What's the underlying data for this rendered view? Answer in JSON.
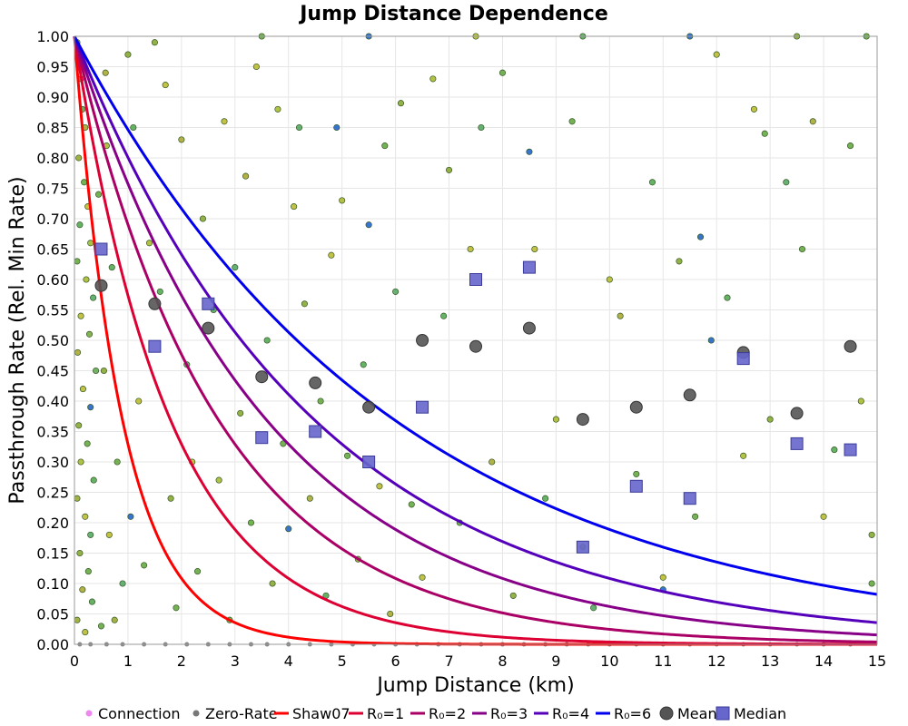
{
  "chart_data": {
    "type": "scatter",
    "title": "Jump Distance Dependence",
    "xlabel": "Jump Distance (km)",
    "ylabel": "Passthrough Rate (Rel. Min Rate)",
    "xlim": [
      0,
      15
    ],
    "ylim": [
      0,
      1
    ],
    "x_ticks": [
      "0",
      "1",
      "2",
      "3",
      "4",
      "5",
      "6",
      "7",
      "8",
      "9",
      "10",
      "11",
      "12",
      "13",
      "14",
      "15"
    ],
    "y_ticks": [
      "0.00",
      "0.05",
      "0.10",
      "0.15",
      "0.20",
      "0.25",
      "0.30",
      "0.35",
      "0.40",
      "0.45",
      "0.50",
      "0.55",
      "0.60",
      "0.65",
      "0.70",
      "0.75",
      "0.80",
      "0.85",
      "0.90",
      "0.95",
      "1.00"
    ],
    "grid": true,
    "legend_position": "bottom",
    "legend": [
      {
        "label": "Connection",
        "kind": "dot",
        "color": "#ee88ee"
      },
      {
        "label": "Zero-Rate",
        "kind": "dot",
        "color": "#777777"
      },
      {
        "label": "Shaw07",
        "kind": "line",
        "color": "#ff0000"
      },
      {
        "label": "R₀=1",
        "kind": "line",
        "color": "#dd0033"
      },
      {
        "label": "R₀=2",
        "kind": "line",
        "color": "#aa0066"
      },
      {
        "label": "R₀=3",
        "kind": "line",
        "color": "#880088"
      },
      {
        "label": "R₀=4",
        "kind": "line",
        "color": "#5500bb"
      },
      {
        "label": "R₀=6",
        "kind": "line",
        "color": "#0000ee"
      },
      {
        "label": "Mean",
        "kind": "circle",
        "color": "#555555"
      },
      {
        "label": "Median",
        "kind": "square",
        "color": "#6666cc"
      }
    ],
    "curves": [
      {
        "name": "Shaw07",
        "color": "#ff0000",
        "decay_km": 0.9
      },
      {
        "name": "R₀=1",
        "color": "#dd0033",
        "decay_km": 1.8
      },
      {
        "name": "R₀=2",
        "color": "#aa0066",
        "decay_km": 2.7
      },
      {
        "name": "R₀=3",
        "color": "#880088",
        "decay_km": 3.6
      },
      {
        "name": "R₀=4",
        "color": "#5500bb",
        "decay_km": 4.5
      },
      {
        "name": "R₀=6",
        "color": "#0000ee",
        "decay_km": 6.0
      }
    ],
    "mean": {
      "x": [
        0.5,
        1.5,
        2.5,
        3.5,
        4.5,
        5.5,
        6.5,
        7.5,
        8.5,
        9.5,
        10.5,
        11.5,
        12.5,
        13.5,
        14.5
      ],
      "y": [
        0.59,
        0.56,
        0.52,
        0.44,
        0.43,
        0.39,
        0.5,
        0.49,
        0.52,
        0.37,
        0.39,
        0.41,
        0.48,
        0.38,
        0.49
      ]
    },
    "median": {
      "x": [
        0.5,
        1.5,
        2.5,
        3.5,
        4.5,
        5.5,
        6.5,
        7.5,
        8.5,
        9.5,
        10.5,
        11.5,
        12.5,
        13.5,
        14.5
      ],
      "y": [
        0.65,
        0.49,
        0.56,
        0.34,
        0.35,
        0.3,
        0.39,
        0.6,
        0.62,
        0.16,
        0.26,
        0.24,
        0.47,
        0.33,
        0.32
      ]
    },
    "points": [
      {
        "x": 0.05,
        "y": 0.99,
        "c": "#88aa33"
      },
      {
        "x": 0.1,
        "y": 0.96,
        "c": "#bbbb33"
      },
      {
        "x": 0.12,
        "y": 0.93,
        "c": "#66aa44"
      },
      {
        "x": 0.15,
        "y": 0.88,
        "c": "#55aa55"
      },
      {
        "x": 0.2,
        "y": 0.85,
        "c": "#aaaa33"
      },
      {
        "x": 0.08,
        "y": 0.8,
        "c": "#99aa33"
      },
      {
        "x": 0.18,
        "y": 0.76,
        "c": "#66aa44"
      },
      {
        "x": 0.25,
        "y": 0.72,
        "c": "#bbbb33"
      },
      {
        "x": 0.1,
        "y": 0.69,
        "c": "#55aa55"
      },
      {
        "x": 0.3,
        "y": 0.66,
        "c": "#99bb33"
      },
      {
        "x": 0.05,
        "y": 0.63,
        "c": "#66aa44"
      },
      {
        "x": 0.22,
        "y": 0.6,
        "c": "#aabb33"
      },
      {
        "x": 0.35,
        "y": 0.57,
        "c": "#55aa66"
      },
      {
        "x": 0.12,
        "y": 0.54,
        "c": "#bbbb33"
      },
      {
        "x": 0.28,
        "y": 0.51,
        "c": "#77aa44"
      },
      {
        "x": 0.06,
        "y": 0.48,
        "c": "#aaaa33"
      },
      {
        "x": 0.4,
        "y": 0.45,
        "c": "#66aa55"
      },
      {
        "x": 0.16,
        "y": 0.42,
        "c": "#bbbb33"
      },
      {
        "x": 0.3,
        "y": 0.39,
        "c": "#2266cc"
      },
      {
        "x": 0.08,
        "y": 0.36,
        "c": "#88aa33"
      },
      {
        "x": 0.24,
        "y": 0.33,
        "c": "#66aa44"
      },
      {
        "x": 0.12,
        "y": 0.3,
        "c": "#aabb33"
      },
      {
        "x": 0.36,
        "y": 0.27,
        "c": "#55aa55"
      },
      {
        "x": 0.05,
        "y": 0.24,
        "c": "#99aa33"
      },
      {
        "x": 0.2,
        "y": 0.21,
        "c": "#bbbb33"
      },
      {
        "x": 0.3,
        "y": 0.18,
        "c": "#55aa66"
      },
      {
        "x": 0.1,
        "y": 0.15,
        "c": "#88aa33"
      },
      {
        "x": 0.26,
        "y": 0.12,
        "c": "#66aa44"
      },
      {
        "x": 0.15,
        "y": 0.09,
        "c": "#aaaa33"
      },
      {
        "x": 0.33,
        "y": 0.07,
        "c": "#55aa55"
      },
      {
        "x": 0.05,
        "y": 0.04,
        "c": "#99aa33"
      },
      {
        "x": 0.2,
        "y": 0.02,
        "c": "#bbbb33"
      },
      {
        "x": 0.5,
        "y": 0.03,
        "c": "#66aa44"
      },
      {
        "x": 0.6,
        "y": 0.82,
        "c": "#aabb33"
      },
      {
        "x": 0.7,
        "y": 0.62,
        "c": "#55aa55"
      },
      {
        "x": 0.55,
        "y": 0.45,
        "c": "#88aa33"
      },
      {
        "x": 0.8,
        "y": 0.3,
        "c": "#66aa44"
      },
      {
        "x": 0.65,
        "y": 0.18,
        "c": "#bbbb33"
      },
      {
        "x": 0.9,
        "y": 0.1,
        "c": "#55aa66"
      },
      {
        "x": 0.75,
        "y": 0.04,
        "c": "#99aa33"
      },
      {
        "x": 0.45,
        "y": 0.74,
        "c": "#66aa44"
      },
      {
        "x": 0.58,
        "y": 0.94,
        "c": "#aaaa33"
      },
      {
        "x": 1.0,
        "y": 0.97,
        "c": "#88aa33"
      },
      {
        "x": 1.1,
        "y": 0.85,
        "c": "#55aa55"
      },
      {
        "x": 1.2,
        "y": 0.4,
        "c": "#bbbb33"
      },
      {
        "x": 1.05,
        "y": 0.21,
        "c": "#2266cc"
      },
      {
        "x": 1.3,
        "y": 0.13,
        "c": "#66aa44"
      },
      {
        "x": 1.4,
        "y": 0.66,
        "c": "#aabb33"
      },
      {
        "x": 1.6,
        "y": 0.58,
        "c": "#55aa55"
      },
      {
        "x": 1.7,
        "y": 0.92,
        "c": "#bbbb33"
      },
      {
        "x": 1.8,
        "y": 0.24,
        "c": "#88aa33"
      },
      {
        "x": 1.9,
        "y": 0.06,
        "c": "#66aa44"
      },
      {
        "x": 2.0,
        "y": 0.83,
        "c": "#aaaa33"
      },
      {
        "x": 2.1,
        "y": 0.46,
        "c": "#55aa66"
      },
      {
        "x": 2.2,
        "y": 0.3,
        "c": "#bbbb33"
      },
      {
        "x": 2.3,
        "y": 0.12,
        "c": "#66aa44"
      },
      {
        "x": 2.4,
        "y": 0.7,
        "c": "#88aa33"
      },
      {
        "x": 2.6,
        "y": 0.55,
        "c": "#55aa55"
      },
      {
        "x": 2.7,
        "y": 0.27,
        "c": "#aabb33"
      },
      {
        "x": 2.8,
        "y": 0.86,
        "c": "#bbbb33"
      },
      {
        "x": 2.9,
        "y": 0.04,
        "c": "#66aa44"
      },
      {
        "x": 3.0,
        "y": 0.62,
        "c": "#55aa66"
      },
      {
        "x": 3.1,
        "y": 0.38,
        "c": "#88aa33"
      },
      {
        "x": 3.2,
        "y": 0.77,
        "c": "#aaaa33"
      },
      {
        "x": 3.3,
        "y": 0.2,
        "c": "#66aa44"
      },
      {
        "x": 3.4,
        "y": 0.95,
        "c": "#bbbb33"
      },
      {
        "x": 3.6,
        "y": 0.5,
        "c": "#55aa55"
      },
      {
        "x": 3.7,
        "y": 0.1,
        "c": "#88aa33"
      },
      {
        "x": 3.8,
        "y": 0.88,
        "c": "#aabb33"
      },
      {
        "x": 3.9,
        "y": 0.33,
        "c": "#66aa44"
      },
      {
        "x": 4.0,
        "y": 0.19,
        "c": "#2266cc"
      },
      {
        "x": 4.1,
        "y": 0.72,
        "c": "#bbbb33"
      },
      {
        "x": 4.2,
        "y": 0.85,
        "c": "#55aa66"
      },
      {
        "x": 4.3,
        "y": 0.56,
        "c": "#88aa33"
      },
      {
        "x": 4.4,
        "y": 0.24,
        "c": "#aaaa33"
      },
      {
        "x": 4.6,
        "y": 0.4,
        "c": "#66aa44"
      },
      {
        "x": 4.7,
        "y": 0.08,
        "c": "#55aa55"
      },
      {
        "x": 4.8,
        "y": 0.64,
        "c": "#bbbb33"
      },
      {
        "x": 4.9,
        "y": 0.85,
        "c": "#2266cc"
      },
      {
        "x": 5.0,
        "y": 0.73,
        "c": "#aabb33"
      },
      {
        "x": 5.1,
        "y": 0.31,
        "c": "#66aa44"
      },
      {
        "x": 5.3,
        "y": 0.14,
        "c": "#88aa33"
      },
      {
        "x": 5.4,
        "y": 0.46,
        "c": "#55aa55"
      },
      {
        "x": 5.5,
        "y": 0.69,
        "c": "#2266cc"
      },
      {
        "x": 5.7,
        "y": 0.26,
        "c": "#bbbb33"
      },
      {
        "x": 5.8,
        "y": 0.82,
        "c": "#66aa44"
      },
      {
        "x": 5.9,
        "y": 0.05,
        "c": "#aaaa33"
      },
      {
        "x": 6.0,
        "y": 0.58,
        "c": "#55aa66"
      },
      {
        "x": 6.1,
        "y": 0.89,
        "c": "#88aa33"
      },
      {
        "x": 6.3,
        "y": 0.23,
        "c": "#66aa44"
      },
      {
        "x": 6.5,
        "y": 0.11,
        "c": "#bbbb33"
      },
      {
        "x": 6.7,
        "y": 0.93,
        "c": "#aabb33"
      },
      {
        "x": 6.9,
        "y": 0.54,
        "c": "#55aa55"
      },
      {
        "x": 7.0,
        "y": 0.78,
        "c": "#88aa33"
      },
      {
        "x": 7.2,
        "y": 0.2,
        "c": "#66aa44"
      },
      {
        "x": 7.4,
        "y": 0.65,
        "c": "#bbbb33"
      },
      {
        "x": 7.6,
        "y": 0.85,
        "c": "#55aa66"
      },
      {
        "x": 7.8,
        "y": 0.3,
        "c": "#aaaa33"
      },
      {
        "x": 8.0,
        "y": 0.94,
        "c": "#66aa44"
      },
      {
        "x": 8.2,
        "y": 0.08,
        "c": "#88aa33"
      },
      {
        "x": 8.5,
        "y": 0.81,
        "c": "#2266cc"
      },
      {
        "x": 8.6,
        "y": 0.65,
        "c": "#bbbb33"
      },
      {
        "x": 8.8,
        "y": 0.24,
        "c": "#55aa55"
      },
      {
        "x": 9.0,
        "y": 0.37,
        "c": "#aabb33"
      },
      {
        "x": 9.3,
        "y": 0.86,
        "c": "#66aa44"
      },
      {
        "x": 9.5,
        "y": 0.16,
        "c": "#88aa33"
      },
      {
        "x": 9.7,
        "y": 0.06,
        "c": "#55aa66"
      },
      {
        "x": 10.0,
        "y": 0.6,
        "c": "#bbbb33"
      },
      {
        "x": 10.2,
        "y": 0.54,
        "c": "#aaaa33"
      },
      {
        "x": 10.5,
        "y": 0.28,
        "c": "#66aa44"
      },
      {
        "x": 10.8,
        "y": 0.76,
        "c": "#55aa55"
      },
      {
        "x": 11.0,
        "y": 0.11,
        "c": "#bbbb33"
      },
      {
        "x": 11.0,
        "y": 0.09,
        "c": "#2266cc"
      },
      {
        "x": 11.3,
        "y": 0.63,
        "c": "#88aa33"
      },
      {
        "x": 11.6,
        "y": 0.21,
        "c": "#66aa44"
      },
      {
        "x": 11.7,
        "y": 0.67,
        "c": "#2266cc"
      },
      {
        "x": 11.9,
        "y": 0.5,
        "c": "#2266cc"
      },
      {
        "x": 12.0,
        "y": 0.97,
        "c": "#bbbb33"
      },
      {
        "x": 12.2,
        "y": 0.57,
        "c": "#55aa55"
      },
      {
        "x": 12.5,
        "y": 0.31,
        "c": "#aabb33"
      },
      {
        "x": 12.7,
        "y": 0.88,
        "c": "#bbbb33"
      },
      {
        "x": 12.9,
        "y": 0.84,
        "c": "#66aa44"
      },
      {
        "x": 13.0,
        "y": 0.37,
        "c": "#88aa33"
      },
      {
        "x": 13.3,
        "y": 0.76,
        "c": "#55aa66"
      },
      {
        "x": 13.6,
        "y": 0.65,
        "c": "#66aa44"
      },
      {
        "x": 13.8,
        "y": 0.86,
        "c": "#aaaa33"
      },
      {
        "x": 14.0,
        "y": 0.21,
        "c": "#bbbb33"
      },
      {
        "x": 14.2,
        "y": 0.32,
        "c": "#55aa55"
      },
      {
        "x": 14.5,
        "y": 0.82,
        "c": "#66aa44"
      },
      {
        "x": 14.7,
        "y": 0.4,
        "c": "#aabb33"
      },
      {
        "x": 14.9,
        "y": 0.18,
        "c": "#88aa33"
      },
      {
        "x": 14.9,
        "y": 0.1,
        "c": "#66aa44"
      },
      {
        "x": 1.5,
        "y": 0.99,
        "c": "#88aa33"
      },
      {
        "x": 3.5,
        "y": 1.0,
        "c": "#66aa44"
      },
      {
        "x": 5.5,
        "y": 1.0,
        "c": "#2266cc"
      },
      {
        "x": 7.5,
        "y": 1.0,
        "c": "#bbbb33"
      },
      {
        "x": 9.5,
        "y": 1.0,
        "c": "#55aa55"
      },
      {
        "x": 11.5,
        "y": 1.0,
        "c": "#2266cc"
      },
      {
        "x": 13.5,
        "y": 1.0,
        "c": "#88aa33"
      },
      {
        "x": 14.8,
        "y": 1.0,
        "c": "#66aa44"
      }
    ],
    "zero_rate_x": [
      0.1,
      0.3,
      0.6,
      0.9,
      1.3,
      1.7,
      2.1,
      2.5,
      2.9,
      3.3,
      3.6,
      4.0,
      4.4,
      4.8,
      5.2,
      5.6,
      6.0,
      6.4,
      6.8,
      7.2,
      7.6,
      8.0,
      8.4,
      8.8,
      9.2,
      9.6,
      10.0,
      10.5,
      11.0,
      11.5,
      12.0,
      12.5,
      13.0,
      13.5,
      14.0,
      14.5
    ]
  }
}
